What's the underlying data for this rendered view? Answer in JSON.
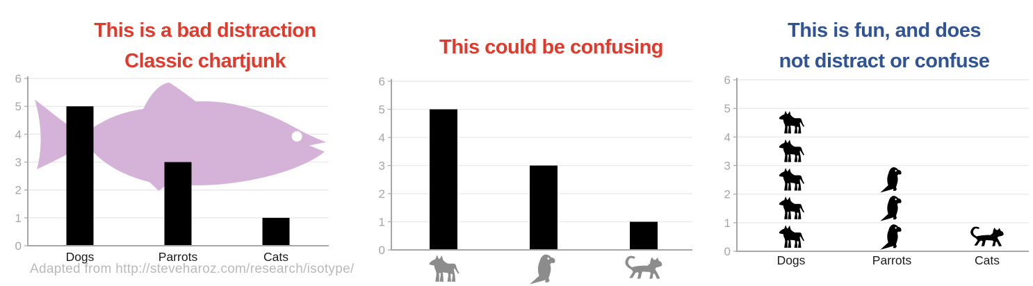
{
  "attribution": "Adapted from http://steveharoz.com/research/isotype/",
  "styles": {
    "background": "#ffffff",
    "red_title": "#e03a2d",
    "blue_title": "#2f5394",
    "grid_color": "#e8e8e8",
    "axis_color": "#a6a6a6",
    "tick_label_color": "#a5a5a5",
    "category_label_color": "#1a1a1a",
    "attribution_color": "#b9b9b9"
  },
  "chart_data": [
    {
      "type": "bar",
      "title_lines": [
        "This is a bad distraction",
        "Classic chartjunk"
      ],
      "title_color": "#e03a2d",
      "categories": [
        "Dogs",
        "Parrots",
        "Cats"
      ],
      "values": [
        5,
        3,
        1
      ],
      "ylim": [
        0,
        6
      ],
      "yticks": [
        0,
        1,
        2,
        3,
        4,
        5,
        6
      ],
      "grid": true,
      "legend": "none",
      "bar_color": "#000000",
      "category_label_style": "text",
      "decoration": {
        "name": "fish",
        "color": "#d5b3d8",
        "eye_color": "#ffffff"
      }
    },
    {
      "type": "bar",
      "title_lines": [
        "This could be confusing"
      ],
      "title_color": "#e03a2d",
      "categories": [
        "Dogs",
        "Parrots",
        "Cats"
      ],
      "values": [
        5,
        3,
        1
      ],
      "ylim": [
        0,
        6
      ],
      "yticks": [
        0,
        1,
        2,
        3,
        4,
        5,
        6
      ],
      "grid": true,
      "legend": "none",
      "bar_color": "#000000",
      "category_label_style": "icon",
      "icons": [
        "dog",
        "parrot",
        "cat"
      ],
      "icon_color": "#8c8c8c"
    },
    {
      "type": "pictograph",
      "title_lines": [
        "This is fun, and does",
        "not distract or confuse"
      ],
      "title_color": "#2f5394",
      "categories": [
        "Dogs",
        "Parrots",
        "Cats"
      ],
      "values": [
        5,
        3,
        1
      ],
      "ylim": [
        0,
        6
      ],
      "yticks": [
        0,
        1,
        2,
        3,
        4,
        5,
        6
      ],
      "grid": true,
      "legend": "none",
      "category_label_style": "text",
      "icons": [
        "dog",
        "parrot",
        "cat"
      ],
      "icon_color": "#000000"
    }
  ]
}
